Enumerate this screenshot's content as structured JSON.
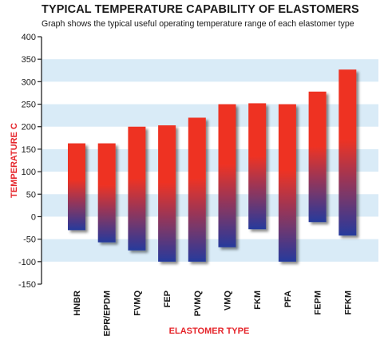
{
  "chart_data": {
    "type": "bar",
    "title": "TYPICAL TEMPERATURE CAPABILITY OF ELASTOMERS",
    "subtitle": "Graph shows the typical useful operating temperature range of each elastomer type",
    "xlabel": "ELASTOMER TYPE",
    "ylabel": "TEMPERATURE C",
    "ylim": [
      -150,
      400
    ],
    "yticks": [
      "400",
      "350",
      "300",
      "250",
      "200",
      "150",
      "100",
      "50",
      "0",
      "-50",
      "-100",
      "-150"
    ],
    "grid": "alternating horizontal bands",
    "categories": [
      "HNBR",
      "EPR/EPDM",
      "FVMQ",
      "FEP",
      "PVMQ",
      "VMQ",
      "FKM",
      "PFA",
      "FEPM",
      "FFKM"
    ],
    "series": [
      {
        "low": [
          -30,
          -57,
          -75,
          -100,
          -100,
          -68,
          -28,
          -100,
          -12,
          -42
        ],
        "high": [
          163,
          163,
          200,
          203,
          220,
          250,
          252,
          250,
          278,
          327
        ]
      }
    ]
  },
  "colors": {
    "bar_top": "#ee3324",
    "bar_bottom": "#263a9c",
    "band": "#d9ebf7",
    "axis_title": "#e5242a",
    "axis_line": "#222222"
  }
}
